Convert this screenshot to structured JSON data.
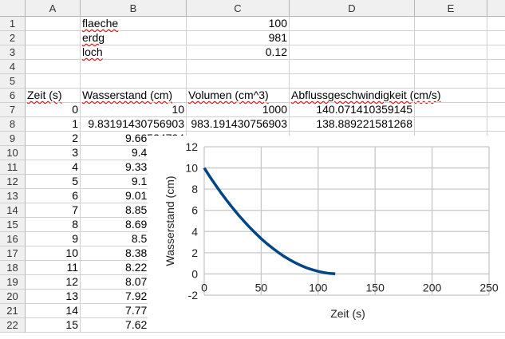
{
  "columns": [
    "A",
    "B",
    "C",
    "D",
    "E"
  ],
  "rows": [
    {
      "n": "1",
      "A": "",
      "B": "flaeche",
      "C": "100",
      "D": ""
    },
    {
      "n": "2",
      "A": "",
      "B": "erdg",
      "C": "981",
      "D": ""
    },
    {
      "n": "3",
      "A": "",
      "B": "loch",
      "C": "0.12",
      "D": ""
    },
    {
      "n": "4",
      "A": "",
      "B": "",
      "C": "",
      "D": ""
    },
    {
      "n": "5",
      "A": "",
      "B": "",
      "C": "",
      "D": ""
    },
    {
      "n": "6",
      "A": "Zeit (s)",
      "B": "Wasserstand (cm)",
      "C": "Volumen (cm^3)",
      "D": "Abflussgeschwindigkeit (cm/s)"
    },
    {
      "n": "7",
      "A": "0",
      "B": "10",
      "C": "1000",
      "D": "140.071410359145"
    },
    {
      "n": "8",
      "A": "1",
      "B": "9.83191430756903",
      "C": "983.191430756903",
      "D": "138.889221581268"
    },
    {
      "n": "9",
      "A": "2",
      "B": "9.66524724",
      "C": "",
      "D": ""
    },
    {
      "n": "10",
      "A": "3",
      "B": "9.4999988",
      "C": "",
      "D": ""
    },
    {
      "n": "11",
      "A": "4",
      "B": "9.33616919",
      "C": "",
      "D": ""
    },
    {
      "n": "12",
      "A": "5",
      "B": "9.1737583",
      "C": "",
      "D": ""
    },
    {
      "n": "13",
      "A": "6",
      "B": "9.01276628",
      "C": "",
      "D": ""
    },
    {
      "n": "14",
      "A": "7",
      "B": "8.85319314",
      "C": "",
      "D": ""
    },
    {
      "n": "15",
      "A": "8",
      "B": "8.69503894",
      "C": "",
      "D": ""
    },
    {
      "n": "16",
      "A": "9",
      "B": "8.5383037",
      "C": "",
      "D": ""
    },
    {
      "n": "17",
      "A": "10",
      "B": "8.38298763",
      "C": "",
      "D": ""
    },
    {
      "n": "18",
      "A": "11",
      "B": "8.22909062",
      "C": "",
      "D": ""
    },
    {
      "n": "19",
      "A": "12",
      "B": "8.07661280",
      "C": "",
      "D": ""
    },
    {
      "n": "20",
      "A": "13",
      "B": "7.92555423",
      "C": "",
      "D": ""
    },
    {
      "n": "21",
      "A": "14",
      "B": "7.77591497",
      "C": "",
      "D": ""
    },
    {
      "n": "22",
      "A": "15",
      "B": "7.62769507",
      "C": "",
      "D": ""
    }
  ],
  "chart_data": {
    "type": "line",
    "xlabel": "Zeit (s)",
    "ylabel": "Wasserstand (cm)",
    "xlim": [
      0,
      250
    ],
    "ylim": [
      -2,
      12
    ],
    "xticks": [
      "0",
      "50",
      "100",
      "150",
      "200",
      "250"
    ],
    "yticks": [
      "-2",
      "0",
      "2",
      "4",
      "6",
      "8",
      "10",
      "12"
    ],
    "grid": true,
    "color": "#004586",
    "x": [
      0,
      5,
      10,
      15,
      20,
      25,
      30,
      35,
      40,
      45,
      50,
      55,
      60,
      65,
      70,
      75,
      80,
      85,
      90,
      95,
      100,
      105,
      110,
      115
    ],
    "y": [
      10,
      9.17,
      8.38,
      7.62,
      6.9,
      6.22,
      5.57,
      4.96,
      4.38,
      3.84,
      3.33,
      2.86,
      2.43,
      2.03,
      1.66,
      1.34,
      1.05,
      0.79,
      0.57,
      0.39,
      0.24,
      0.13,
      0.05,
      0.01
    ]
  }
}
